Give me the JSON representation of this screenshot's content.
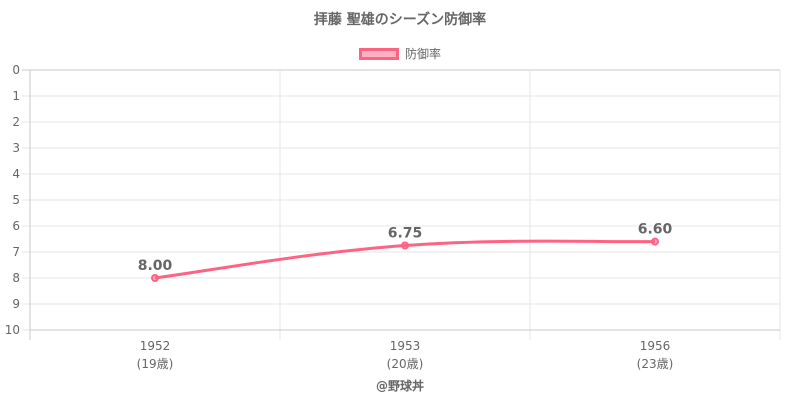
{
  "chart_data": {
    "type": "line",
    "title": "拝藤 聖雄のシーズン防御率",
    "categories": [
      "1952",
      "1953",
      "1956"
    ],
    "category_sublabels": [
      "(19歳)",
      "(20歳)",
      "(23歳)"
    ],
    "series": [
      {
        "name": "防御率",
        "values": [
          8.0,
          6.75,
          6.6
        ],
        "value_labels": [
          "8.00",
          "6.75",
          "6.60"
        ],
        "color": "#ff6384",
        "fill": "rgba(255,99,132,0.5)"
      }
    ],
    "ylim": [
      0,
      10
    ],
    "y_reversed": true,
    "y_ticks": [
      "0",
      "1",
      "2",
      "3",
      "4",
      "5",
      "6",
      "7",
      "8",
      "9",
      "10"
    ],
    "legend_position": "top",
    "grid": true,
    "footer": "@野球丼"
  }
}
